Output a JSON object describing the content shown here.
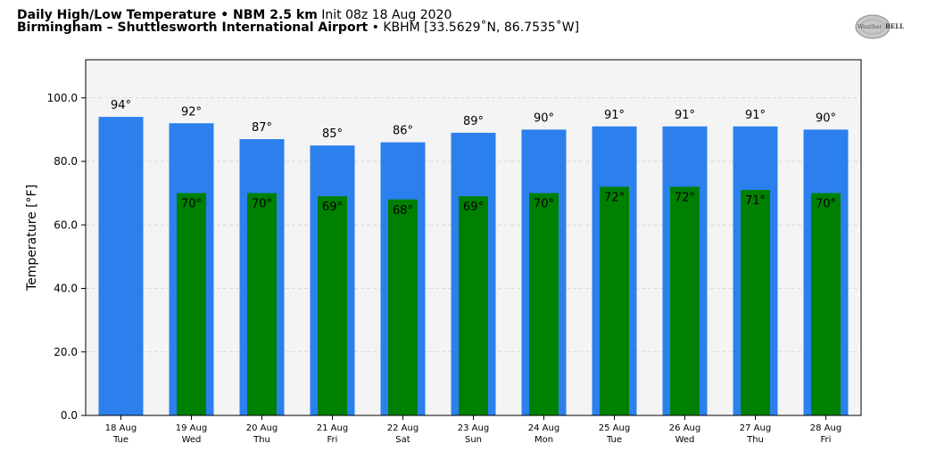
{
  "header": {
    "line1_bold": "Daily High/Low Temperature • NBM 2.5 km",
    "line1_light": "Init 08z 18 Aug 2020",
    "line2_bold": "Birmingham – Shuttlesworth International Airport",
    "line2_light": "• KBHM [33.5629˚N, 86.7535˚W]"
  },
  "logo": {
    "name": "WeatherBELL",
    "text_prefix": "Weather",
    "text_suffix": "BELL"
  },
  "chart_data": {
    "type": "bar",
    "ylabel": "Temperature [°F]",
    "xlabel": "",
    "ylim": [
      0,
      112
    ],
    "yticks": [
      0,
      20,
      40,
      60,
      80,
      100
    ],
    "ytick_labels": [
      "0.0",
      "20.0",
      "40.0",
      "60.0",
      "80.0",
      "100.0"
    ],
    "grid": true,
    "categories": [
      {
        "date": "18 Aug",
        "day": "Tue"
      },
      {
        "date": "19 Aug",
        "day": "Wed"
      },
      {
        "date": "20 Aug",
        "day": "Thu"
      },
      {
        "date": "21 Aug",
        "day": "Fri"
      },
      {
        "date": "22 Aug",
        "day": "Sat"
      },
      {
        "date": "23 Aug",
        "day": "Sun"
      },
      {
        "date": "24 Aug",
        "day": "Mon"
      },
      {
        "date": "25 Aug",
        "day": "Tue"
      },
      {
        "date": "26 Aug",
        "day": "Wed"
      },
      {
        "date": "27 Aug",
        "day": "Thu"
      },
      {
        "date": "28 Aug",
        "day": "Fri"
      }
    ],
    "series": [
      {
        "name": "High",
        "color": "#2b80ee",
        "values": [
          94,
          92,
          87,
          85,
          86,
          89,
          90,
          91,
          91,
          91,
          90
        ],
        "labels": [
          "94°",
          "92°",
          "87°",
          "85°",
          "86°",
          "89°",
          "90°",
          "91°",
          "91°",
          "91°",
          "90°"
        ]
      },
      {
        "name": "Low",
        "color": "#008000",
        "values": [
          null,
          70,
          70,
          69,
          68,
          69,
          70,
          72,
          72,
          71,
          70
        ],
        "labels": [
          null,
          "70°",
          "70°",
          "69°",
          "68°",
          "69°",
          "70°",
          "72°",
          "72°",
          "71°",
          "70°"
        ]
      }
    ],
    "plot_background": "#f4f4f4"
  }
}
